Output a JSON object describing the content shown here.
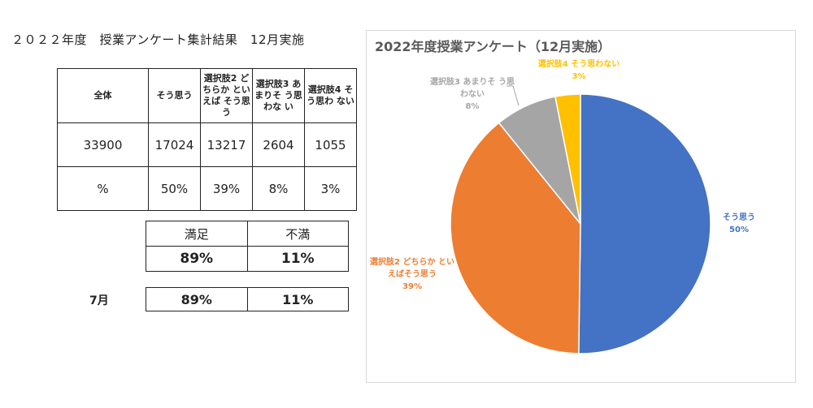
{
  "page_title": "２０２２年度　授業アンケート集計結果　12月実施",
  "main_table": {
    "headers": [
      "全体",
      "そう思う",
      "選択肢2 どちらか といえば そう思う",
      "選択肢3 あまりそ う思わな い",
      "選択肢4 そう思わ ない"
    ],
    "count_row": [
      "33900",
      "17024",
      "13217",
      "2604",
      "1055"
    ],
    "percent_row": [
      "%",
      "50%",
      "39%",
      "8%",
      "3%"
    ]
  },
  "satisfaction": {
    "labels": [
      "満足",
      "不満"
    ],
    "values": [
      "89%",
      "11%"
    ]
  },
  "july": {
    "label": "7月",
    "values": [
      "89%",
      "11%"
    ]
  },
  "chart_data": {
    "type": "pie",
    "title": "2022年度授業アンケート（12月実施）",
    "slices": [
      {
        "label": "そう思う",
        "value": 17024,
        "pct": "50%",
        "color": "#4472C4"
      },
      {
        "label": "選択肢2 どちらか といえばそう思う",
        "value": 13217,
        "pct": "39%",
        "color": "#ED7D31"
      },
      {
        "label": "選択肢3 あまりそ う思わない",
        "value": 2604,
        "pct": "8%",
        "color": "#A5A5A5"
      },
      {
        "label": "選択肢4 そう思わない",
        "value": 1055,
        "pct": "3%",
        "color": "#FFC000"
      }
    ]
  }
}
